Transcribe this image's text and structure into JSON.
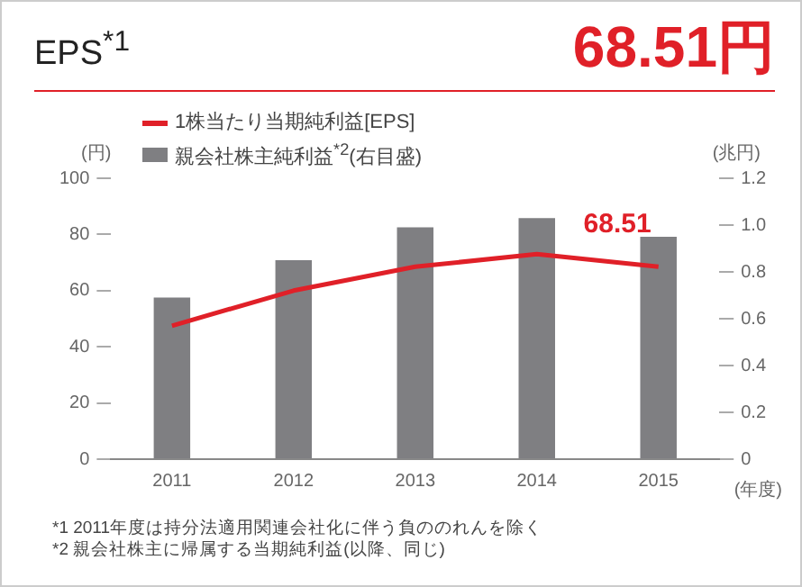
{
  "chart_data": {
    "type": "bar",
    "title": "EPS$^{*1}$",
    "subtitle": "68.51円",
    "ylabel": "(円)",
    "y2label": "(兆円)",
    "xlabel": "(年度)",
    "categories": [
      "2011",
      "2012",
      "2013",
      "2014",
      "2015"
    ],
    "series": [
      {
        "name": "1株当たり当期純利益[EPS]",
        "type": "line",
        "color": "#e02028",
        "values": [
          47.5,
          60,
          68.5,
          73,
          68.51
        ]
      },
      {
        "name": "親会社株主純利益$^{*2}$(右目盛)",
        "axis": "y2",
        "color": "#7f7f82",
        "values": [
          0.69,
          0.85,
          0.99,
          1.03,
          0.95
        ]
      }
    ],
    "ylim": [
      0,
      100
    ],
    "yticks": [
      0,
      20,
      40,
      60,
      80,
      100
    ],
    "y2lim": [
      0,
      1.2
    ],
    "y2ticks": [
      {
        "value": 0,
        "label": "0"
      },
      {
        "value": 0.2,
        "label": "0.2"
      },
      {
        "value": 0.4,
        "label": "0.4"
      },
      {
        "value": 0.6,
        "label": "0.6"
      },
      {
        "value": 0.8,
        "label": "0.8"
      },
      {
        "value": 1.0,
        "label": "1.0"
      },
      {
        "value": 1.2,
        "label": "1.2"
      }
    ],
    "legend": "top left",
    "marker": "none",
    "annotations": [
      {
        "text": "68.51",
        "x": "2015",
        "y": 68.51
      },
      "*1 2011年度は持分法適用関連会社化に伴う負ののれんを除く",
      "*2 親会社株主に帰属する当期純利益(以降、同じ)"
    ]
  }
}
